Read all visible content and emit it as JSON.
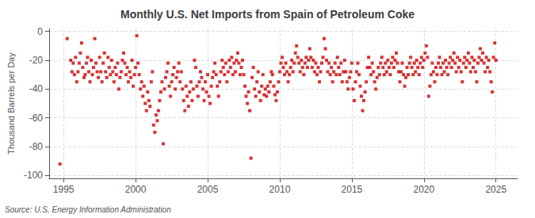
{
  "chart_data": {
    "type": "scatter",
    "title": "Monthly U.S. Net Imports from Spain of Petroleum Coke",
    "ylabel": "Thousand Barrels per Day",
    "source": "Source: U.S. Energy Information Administration",
    "color": "#cc0000",
    "marker": "square",
    "grid": true,
    "xlim": [
      1994.0,
      2026.5
    ],
    "ylim": [
      -102,
      2
    ],
    "xticks": [
      1995,
      2000,
      2005,
      2010,
      2015,
      2020,
      2025
    ],
    "yticks": [
      0,
      -20,
      -40,
      -60,
      -80,
      -100
    ],
    "x": [
      1994.75,
      1995.25,
      1995.5,
      1995.583,
      1995.667,
      1995.75,
      1995.833,
      1995.917,
      1996.0,
      1996.083,
      1996.167,
      1996.25,
      1996.333,
      1996.417,
      1996.5,
      1996.583,
      1996.667,
      1996.75,
      1996.833,
      1996.917,
      1997.0,
      1997.083,
      1997.167,
      1997.25,
      1997.333,
      1997.417,
      1997.5,
      1997.583,
      1997.667,
      1997.75,
      1997.833,
      1997.917,
      1998.0,
      1998.083,
      1998.167,
      1998.25,
      1998.333,
      1998.417,
      1998.5,
      1998.583,
      1998.667,
      1998.75,
      1998.833,
      1998.917,
      1999.0,
      1999.083,
      1999.167,
      1999.25,
      1999.333,
      1999.417,
      1999.5,
      1999.583,
      1999.667,
      1999.75,
      1999.833,
      1999.917,
      2000.0,
      2000.083,
      2000.167,
      2000.25,
      2000.333,
      2000.417,
      2000.5,
      2000.583,
      2000.667,
      2000.75,
      2000.833,
      2000.917,
      2001.0,
      2001.083,
      2001.167,
      2001.25,
      2001.333,
      2001.417,
      2001.5,
      2001.583,
      2001.667,
      2001.75,
      2001.833,
      2001.917,
      2002.0,
      2002.083,
      2002.167,
      2002.25,
      2002.333,
      2002.417,
      2002.5,
      2002.583,
      2002.667,
      2002.75,
      2002.833,
      2002.917,
      2003.0,
      2003.083,
      2003.167,
      2003.25,
      2003.333,
      2003.417,
      2003.5,
      2003.583,
      2003.667,
      2003.75,
      2003.833,
      2003.917,
      2004.0,
      2004.083,
      2004.167,
      2004.25,
      2004.333,
      2004.417,
      2004.5,
      2004.583,
      2004.667,
      2004.75,
      2004.833,
      2004.917,
      2005.0,
      2005.083,
      2005.167,
      2005.25,
      2005.333,
      2005.417,
      2005.5,
      2005.583,
      2005.667,
      2005.75,
      2005.833,
      2005.917,
      2006.0,
      2006.083,
      2006.167,
      2006.25,
      2006.333,
      2006.417,
      2006.5,
      2006.583,
      2006.667,
      2006.75,
      2006.833,
      2006.917,
      2007.0,
      2007.083,
      2007.167,
      2007.25,
      2007.333,
      2007.417,
      2007.5,
      2007.583,
      2007.667,
      2007.75,
      2007.833,
      2007.917,
      2008.0,
      2008.083,
      2008.167,
      2008.25,
      2008.333,
      2008.417,
      2008.5,
      2008.583,
      2008.667,
      2008.75,
      2008.833,
      2008.917,
      2009.0,
      2009.083,
      2009.167,
      2009.25,
      2009.333,
      2009.417,
      2009.5,
      2009.583,
      2009.667,
      2009.75,
      2009.833,
      2009.917,
      2010.0,
      2010.083,
      2010.167,
      2010.25,
      2010.333,
      2010.417,
      2010.5,
      2010.583,
      2010.667,
      2010.75,
      2010.833,
      2010.917,
      2011.0,
      2011.083,
      2011.167,
      2011.25,
      2011.333,
      2011.417,
      2011.5,
      2011.583,
      2011.667,
      2011.75,
      2011.833,
      2011.917,
      2012.0,
      2012.083,
      2012.167,
      2012.25,
      2012.333,
      2012.417,
      2012.5,
      2012.583,
      2012.667,
      2012.75,
      2012.833,
      2012.917,
      2013.0,
      2013.083,
      2013.167,
      2013.25,
      2013.333,
      2013.417,
      2013.5,
      2013.583,
      2013.667,
      2013.75,
      2013.833,
      2013.917,
      2014.0,
      2014.083,
      2014.167,
      2014.25,
      2014.333,
      2014.417,
      2014.5,
      2014.583,
      2014.667,
      2014.75,
      2014.833,
      2014.917,
      2015.0,
      2015.083,
      2015.167,
      2015.25,
      2015.333,
      2015.417,
      2015.5,
      2015.583,
      2015.667,
      2015.75,
      2015.833,
      2015.917,
      2016.0,
      2016.083,
      2016.167,
      2016.25,
      2016.333,
      2016.417,
      2016.5,
      2016.583,
      2016.667,
      2016.75,
      2016.833,
      2016.917,
      2017.0,
      2017.083,
      2017.167,
      2017.25,
      2017.333,
      2017.417,
      2017.5,
      2017.583,
      2017.667,
      2017.75,
      2017.833,
      2017.917,
      2018.0,
      2018.083,
      2018.167,
      2018.25,
      2018.333,
      2018.417,
      2018.5,
      2018.583,
      2018.667,
      2018.75,
      2018.833,
      2018.917,
      2019.0,
      2019.083,
      2019.167,
      2019.25,
      2019.333,
      2019.417,
      2019.5,
      2019.583,
      2019.667,
      2019.75,
      2019.833,
      2019.917,
      2020.0,
      2020.083,
      2020.167,
      2020.25,
      2020.333,
      2020.417,
      2020.5,
      2020.583,
      2020.667,
      2020.75,
      2020.833,
      2020.917,
      2021.0,
      2021.083,
      2021.167,
      2021.25,
      2021.333,
      2021.417,
      2021.5,
      2021.583,
      2021.667,
      2021.75,
      2021.833,
      2021.917,
      2022.0,
      2022.083,
      2022.167,
      2022.25,
      2022.333,
      2022.417,
      2022.5,
      2022.583,
      2022.667,
      2022.75,
      2022.833,
      2022.917,
      2023.0,
      2023.083,
      2023.167,
      2023.25,
      2023.333,
      2023.417,
      2023.5,
      2023.583,
      2023.667,
      2023.75,
      2023.833,
      2023.917,
      2024.0,
      2024.083,
      2024.167,
      2024.25,
      2024.333,
      2024.417,
      2024.5,
      2024.583,
      2024.667,
      2024.75,
      2024.833,
      2024.917,
      2025.0
    ],
    "values": [
      -92,
      -5,
      -20,
      -28,
      -22,
      -30,
      -18,
      -35,
      -28,
      -22,
      -15,
      -8,
      -25,
      -32,
      -30,
      -22,
      -18,
      -28,
      -35,
      -20,
      -30,
      -25,
      -5,
      -22,
      -28,
      -32,
      -18,
      -28,
      -35,
      -22,
      -15,
      -28,
      -32,
      -18,
      -25,
      -30,
      -20,
      -28,
      -35,
      -25,
      -30,
      -22,
      -40,
      -32,
      -28,
      -20,
      -15,
      -22,
      -30,
      -25,
      -35,
      -28,
      -32,
      -20,
      -38,
      -30,
      -25,
      -3,
      -22,
      -30,
      -40,
      -35,
      -45,
      -38,
      -50,
      -55,
      -42,
      -48,
      -52,
      -35,
      -28,
      -65,
      -70,
      -58,
      -62,
      -55,
      -48,
      -42,
      -35,
      -78,
      -40,
      -32,
      -28,
      -22,
      -38,
      -45,
      -35,
      -30,
      -25,
      -40,
      -32,
      -28,
      -22,
      -35,
      -28,
      -40,
      -48,
      -55,
      -38,
      -45,
      -52,
      -42,
      -35,
      -48,
      -40,
      -20,
      -25,
      -38,
      -45,
      -35,
      -28,
      -32,
      -40,
      -48,
      -35,
      -42,
      -30,
      -45,
      -50,
      -38,
      -32,
      -28,
      -22,
      -30,
      -38,
      -45,
      -35,
      -28,
      -20,
      -25,
      -30,
      -22,
      -35,
      -28,
      -20,
      -25,
      -18,
      -30,
      -22,
      -28,
      -20,
      -15,
      -22,
      -30,
      -25,
      -20,
      -30,
      -38,
      -45,
      -50,
      -42,
      -55,
      -88,
      -32,
      -25,
      -40,
      -45,
      -35,
      -28,
      -42,
      -48,
      -38,
      -30,
      -44,
      -40,
      -45,
      -38,
      -42,
      -35,
      -28,
      -30,
      -38,
      -44,
      -48,
      -42,
      -35,
      -28,
      -22,
      -18,
      -25,
      -30,
      -22,
      -28,
      -35,
      -30,
      -25,
      -20,
      -28,
      -22,
      -15,
      -10,
      -18,
      -22,
      -28,
      -20,
      -25,
      -30,
      -22,
      -18,
      -25,
      -20,
      -12,
      -18,
      -25,
      -20,
      -28,
      -22,
      -30,
      -25,
      -35,
      -28,
      -22,
      -18,
      -5,
      -12,
      -20,
      -28,
      -22,
      -30,
      -25,
      -35,
      -28,
      -22,
      -30,
      -18,
      -25,
      -30,
      -22,
      -35,
      -28,
      -20,
      -28,
      -35,
      -40,
      -32,
      -28,
      -22,
      -40,
      -48,
      -35,
      -28,
      -22,
      -30,
      -38,
      -45,
      -55,
      -48,
      -42,
      -35,
      -25,
      -18,
      -25,
      -30,
      -22,
      -28,
      -35,
      -40,
      -32,
      -25,
      -30,
      -22,
      -18,
      -25,
      -30,
      -22,
      -28,
      -20,
      -25,
      -30,
      -22,
      -18,
      -25,
      -20,
      -15,
      -22,
      -28,
      -35,
      -28,
      -22,
      -30,
      -38,
      -32,
      -25,
      -30,
      -22,
      -18,
      -25,
      -30,
      -22,
      -28,
      -20,
      -25,
      -30,
      -22,
      -18,
      -25,
      -20,
      -15,
      -10,
      -18,
      -45,
      -38,
      -30,
      -22,
      -28,
      -35,
      -25,
      -30,
      -22,
      -18,
      -25,
      -30,
      -22,
      -28,
      -20,
      -25,
      -30,
      -22,
      -18,
      -25,
      -20,
      -15,
      -22,
      -28,
      -18,
      -25,
      -20,
      -28,
      -35,
      -22,
      -18,
      -25,
      -20,
      -15,
      -22,
      -28,
      -18,
      -25,
      -20,
      -28,
      -35,
      -22,
      -18,
      -12,
      -20,
      -15,
      -22,
      -28,
      -18,
      -25,
      -20,
      -28,
      -35,
      -42,
      -18,
      -8,
      -20
    ]
  }
}
